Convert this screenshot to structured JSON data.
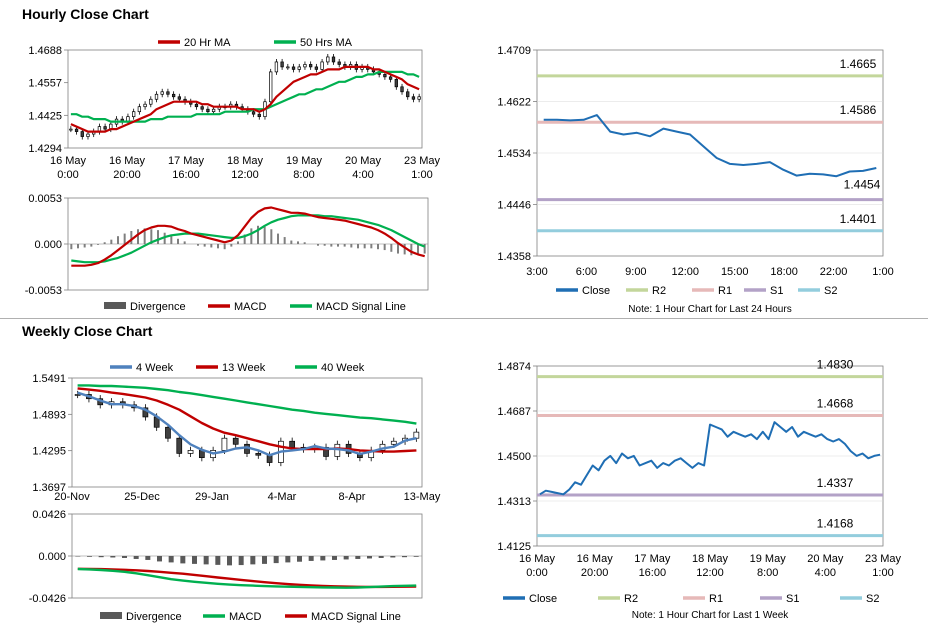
{
  "sections": {
    "hourly_title": "Hourly Close Chart",
    "weekly_title": "Weekly Close Chart"
  },
  "chart_data": [
    {
      "id": "hourly-ma",
      "type": "candlestick",
      "x_tick_labels": [
        [
          "16 May",
          "0:00"
        ],
        [
          "16 May",
          "20:00"
        ],
        [
          "17 May",
          "16:00"
        ],
        [
          "18 May",
          "12:00"
        ],
        [
          "19 May",
          "8:00"
        ],
        [
          "20 May",
          "4:00"
        ],
        [
          "23 May",
          "1:00"
        ]
      ],
      "y_tick_labels": [
        "1.4688",
        "1.4557",
        "1.4425",
        "1.4294"
      ],
      "ylim": [
        1.4294,
        1.4688
      ],
      "legend": [
        "20 Hr MA",
        "50 Hrs MA"
      ],
      "colors": {
        "ma_short": "#c00000",
        "ma_long": "#00b050",
        "candle": "#000000"
      },
      "close": [
        1.437,
        1.436,
        1.434,
        1.435,
        1.436,
        1.438,
        1.437,
        1.439,
        1.441,
        1.44,
        1.442,
        1.444,
        1.446,
        1.447,
        1.449,
        1.451,
        1.452,
        1.451,
        1.45,
        1.449,
        1.448,
        1.447,
        1.446,
        1.445,
        1.444,
        1.445,
        1.446,
        1.446,
        1.447,
        1.446,
        1.445,
        1.444,
        1.443,
        1.442,
        1.448,
        1.46,
        1.464,
        1.462,
        1.462,
        1.461,
        1.462,
        1.463,
        1.462,
        1.461,
        1.464,
        1.466,
        1.464,
        1.463,
        1.462,
        1.463,
        1.461,
        1.462,
        1.461,
        1.46,
        1.459,
        1.458,
        1.457,
        1.454,
        1.452,
        1.45,
        1.449,
        1.45
      ],
      "ma20": [
        1.439,
        1.438,
        1.437,
        1.436,
        1.436,
        1.436,
        1.436,
        1.437,
        1.437,
        1.438,
        1.439,
        1.44,
        1.441,
        1.442,
        1.443,
        1.445,
        1.446,
        1.447,
        1.448,
        1.448,
        1.448,
        1.448,
        1.448,
        1.447,
        1.447,
        1.446,
        1.446,
        1.446,
        1.446,
        1.446,
        1.445,
        1.445,
        1.445,
        1.444,
        1.445,
        1.447,
        1.45,
        1.452,
        1.454,
        1.456,
        1.457,
        1.458,
        1.459,
        1.459,
        1.46,
        1.461,
        1.461,
        1.461,
        1.462,
        1.462,
        1.462,
        1.462,
        1.462,
        1.461,
        1.461,
        1.46,
        1.459,
        1.458,
        1.457,
        1.455,
        1.454,
        1.453
      ],
      "ma50": [
        1.443,
        1.443,
        1.442,
        1.442,
        1.441,
        1.441,
        1.441,
        1.44,
        1.44,
        1.44,
        1.44,
        1.44,
        1.44,
        1.44,
        1.441,
        1.441,
        1.441,
        1.442,
        1.442,
        1.442,
        1.442,
        1.442,
        1.443,
        1.443,
        1.443,
        1.443,
        1.443,
        1.444,
        1.444,
        1.444,
        1.444,
        1.444,
        1.445,
        1.445,
        1.445,
        1.446,
        1.447,
        1.448,
        1.449,
        1.45,
        1.451,
        1.451,
        1.452,
        1.453,
        1.453,
        1.454,
        1.455,
        1.456,
        1.456,
        1.457,
        1.458,
        1.458,
        1.459,
        1.459,
        1.46,
        1.46,
        1.46,
        1.46,
        1.46,
        1.459,
        1.459,
        1.458
      ]
    },
    {
      "id": "hourly-macd",
      "type": "bar+line",
      "y_tick_labels": [
        "0.0053",
        "0.000",
        "-0.0053"
      ],
      "ylim": [
        -0.0053,
        0.0053
      ],
      "legend": [
        "Divergence",
        "MACD",
        "MACD Signal Line"
      ],
      "colors": {
        "divergence": "#7f7f7f",
        "macd": "#c00000",
        "signal": "#00b050"
      },
      "macd": [
        -0.0025,
        -0.0025,
        -0.0025,
        -0.0024,
        -0.0022,
        -0.0018,
        -0.0013,
        -0.0007,
        -0.0001,
        0.0005,
        0.0011,
        0.0016,
        0.0019,
        0.0021,
        0.0021,
        0.002,
        0.0017,
        0.0015,
        0.0012,
        0.001,
        0.0008,
        0.0006,
        0.0004,
        0.0002,
        0.0004,
        0.001,
        0.002,
        0.003,
        0.0037,
        0.0041,
        0.0042,
        0.004,
        0.0038,
        0.0036,
        0.0036,
        0.0035,
        0.0033,
        0.0031,
        0.003,
        0.0029,
        0.0028,
        0.0027,
        0.0025,
        0.0023,
        0.0021,
        0.0019,
        0.0016,
        0.0012,
        0.0007,
        0.0001,
        -0.0004,
        -0.0009,
        -0.0012,
        -0.0014
      ],
      "signal": [
        -0.0019,
        -0.002,
        -0.0021,
        -0.0021,
        -0.0021,
        -0.002,
        -0.0018,
        -0.0016,
        -0.0013,
        -0.001,
        -0.0006,
        -0.0002,
        0.0002,
        0.0005,
        0.0008,
        0.001,
        0.0011,
        0.0012,
        0.0012,
        0.0012,
        0.0011,
        0.001,
        0.0009,
        0.0008,
        0.0007,
        0.0007,
        0.0009,
        0.0012,
        0.0016,
        0.0021,
        0.0025,
        0.0028,
        0.003,
        0.0032,
        0.0033,
        0.0033,
        0.0033,
        0.0033,
        0.0032,
        0.0032,
        0.0031,
        0.003,
        0.0029,
        0.0028,
        0.0026,
        0.0024,
        0.0022,
        0.0019,
        0.0016,
        0.0012,
        0.0008,
        0.0004,
        0.0,
        -0.0003
      ]
    },
    {
      "id": "hourly-levels",
      "type": "line",
      "x_tick_labels": [
        "3:00",
        "6:00",
        "9:00",
        "12:00",
        "15:00",
        "18:00",
        "22:00",
        "1:00"
      ],
      "y_tick_labels": [
        "1.4709",
        "1.4622",
        "1.4534",
        "1.4446",
        "1.4358"
      ],
      "ylim": [
        1.4358,
        1.4709
      ],
      "levels": [
        {
          "name": "R2",
          "value": 1.4665,
          "label": "1.4665",
          "color": "#c3d69b"
        },
        {
          "name": "R1",
          "value": 1.4586,
          "label": "1.4586",
          "color": "#e6b9b8"
        },
        {
          "name": "S1",
          "value": 1.4454,
          "label": "1.4454",
          "color": "#b3a2c7"
        },
        {
          "name": "S2",
          "value": 1.4401,
          "label": "1.4401",
          "color": "#93cddd"
        }
      ],
      "close_color": "#1f6eb4",
      "legend": [
        "Close",
        "R2",
        "R1",
        "S1",
        "S2"
      ],
      "note": "Note: 1 Hour Chart for Last 24 Hours",
      "close": [
        1.459,
        1.459,
        1.4589,
        1.459,
        1.4598,
        1.457,
        1.4565,
        1.4568,
        1.4562,
        1.4575,
        1.457,
        1.4565,
        1.4545,
        1.4525,
        1.4515,
        1.4513,
        1.4515,
        1.4518,
        1.4505,
        1.4495,
        1.4498,
        1.4497,
        1.4494,
        1.4502,
        1.4503,
        1.4508
      ]
    },
    {
      "id": "weekly-ma",
      "type": "candlestick",
      "x_tick_labels": [
        "20-Nov",
        "25-Dec",
        "29-Jan",
        "4-Mar",
        "8-Apr",
        "13-May"
      ],
      "y_tick_labels": [
        "1.5491",
        "1.4893",
        "1.4295",
        "1.3697"
      ],
      "ylim": [
        1.3697,
        1.5491
      ],
      "legend": [
        "4 Week",
        "13 Week",
        "40 Week"
      ],
      "colors": {
        "ma4": "#4f81bd",
        "ma13": "#c00000",
        "ma40": "#00b050",
        "candle": "#000000"
      },
      "close": [
        1.522,
        1.515,
        1.505,
        1.51,
        1.505,
        1.5,
        1.485,
        1.468,
        1.45,
        1.425,
        1.43,
        1.418,
        1.43,
        1.45,
        1.44,
        1.425,
        1.422,
        1.41,
        1.445,
        1.435,
        1.432,
        1.435,
        1.42,
        1.44,
        1.425,
        1.418,
        1.43,
        1.44,
        1.445,
        1.45,
        1.46
      ],
      "ma4": [
        1.525,
        1.519,
        1.512,
        1.506,
        1.506,
        1.503,
        1.497,
        1.486,
        1.472,
        1.455,
        1.44,
        1.431,
        1.425,
        1.428,
        1.433,
        1.435,
        1.43,
        1.422,
        1.428,
        1.43,
        1.432,
        1.437,
        1.433,
        1.432,
        1.43,
        1.424,
        1.428,
        1.433,
        1.436,
        1.446,
        1.45
      ],
      "ma13": [
        1.532,
        1.53,
        1.528,
        1.525,
        1.523,
        1.52,
        1.517,
        1.512,
        1.505,
        1.497,
        1.486,
        1.475,
        1.466,
        1.459,
        1.455,
        1.45,
        1.445,
        1.44,
        1.436,
        1.433,
        1.432,
        1.432,
        1.432,
        1.433,
        1.432,
        1.43,
        1.429,
        1.428,
        1.428,
        1.429,
        1.43
      ],
      "ma40": [
        1.537,
        1.537,
        1.536,
        1.536,
        1.535,
        1.534,
        1.533,
        1.531,
        1.529,
        1.526,
        1.524,
        1.521,
        1.518,
        1.515,
        1.512,
        1.509,
        1.506,
        1.503,
        1.5,
        1.497,
        1.495,
        1.492,
        1.49,
        1.488,
        1.486,
        1.484,
        1.483,
        1.481,
        1.479,
        1.477,
        1.474
      ]
    },
    {
      "id": "weekly-macd",
      "type": "bar+line",
      "y_tick_labels": [
        "0.0426",
        "0.000",
        "-0.0426"
      ],
      "ylim": [
        -0.0426,
        0.0426
      ],
      "legend": [
        "Divergence",
        "MACD",
        "MACD Signal Line"
      ],
      "colors": {
        "divergence": "#595959",
        "macd": "#00b050",
        "signal": "#c00000"
      },
      "divergence": [
        -0.0005,
        -0.0008,
        -0.0012,
        -0.0015,
        -0.002,
        -0.003,
        -0.004,
        -0.0055,
        -0.0065,
        -0.0075,
        -0.008,
        -0.0085,
        -0.009,
        -0.0095,
        -0.0092,
        -0.0085,
        -0.008,
        -0.0072,
        -0.0065,
        -0.0058,
        -0.005,
        -0.0045,
        -0.004,
        -0.0035,
        -0.003,
        -0.0025,
        -0.002,
        -0.0015,
        -0.0012,
        -0.0008
      ],
      "macd": [
        -0.0132,
        -0.0136,
        -0.0142,
        -0.015,
        -0.016,
        -0.0175,
        -0.0195,
        -0.0215,
        -0.0235,
        -0.025,
        -0.0262,
        -0.0272,
        -0.0282,
        -0.029,
        -0.0296,
        -0.03,
        -0.0305,
        -0.0308,
        -0.0311,
        -0.0313,
        -0.0316,
        -0.0318,
        -0.032,
        -0.0322,
        -0.032,
        -0.0315,
        -0.031,
        -0.0305,
        -0.0302,
        -0.03
      ],
      "signal": [
        -0.013,
        -0.0131,
        -0.0133,
        -0.0136,
        -0.014,
        -0.0145,
        -0.0152,
        -0.016,
        -0.017,
        -0.018,
        -0.0192,
        -0.0205,
        -0.0218,
        -0.023,
        -0.0242,
        -0.0255,
        -0.0266,
        -0.0276,
        -0.0285,
        -0.0292,
        -0.0298,
        -0.0303,
        -0.0307,
        -0.031,
        -0.0312,
        -0.0313,
        -0.0313,
        -0.0312,
        -0.0311,
        -0.031
      ]
    },
    {
      "id": "weekly-levels",
      "type": "line",
      "x_tick_labels": [
        [
          "16 May",
          "0:00"
        ],
        [
          "16 May",
          "20:00"
        ],
        [
          "17 May",
          "16:00"
        ],
        [
          "18 May",
          "12:00"
        ],
        [
          "19 May",
          "8:00"
        ],
        [
          "20 May",
          "4:00"
        ],
        [
          "23 May",
          "1:00"
        ]
      ],
      "y_tick_labels": [
        "1.4874",
        "1.4687",
        "1.4500",
        "1.4313",
        "1.4125"
      ],
      "ylim": [
        1.4125,
        1.4874
      ],
      "levels": [
        {
          "name": "R2",
          "value": 1.483,
          "label": "1.4830",
          "color": "#c3d69b"
        },
        {
          "name": "R1",
          "value": 1.4668,
          "label": "1.4668",
          "color": "#e6b9b8"
        },
        {
          "name": "S1",
          "value": 1.4337,
          "label": "1.4337",
          "color": "#b3a2c7"
        },
        {
          "name": "S2",
          "value": 1.4168,
          "label": "1.4168",
          "color": "#93cddd"
        }
      ],
      "close_color": "#1f6eb4",
      "legend": [
        "Close",
        "R2",
        "R1",
        "S1",
        "S2"
      ],
      "note": "Note: 1 Hour Chart for Last 1 Week",
      "close": [
        1.434,
        1.4355,
        1.435,
        1.4345,
        1.434,
        1.436,
        1.439,
        1.438,
        1.442,
        1.446,
        1.444,
        1.448,
        1.45,
        1.447,
        1.451,
        1.449,
        1.45,
        1.446,
        1.447,
        1.448,
        1.445,
        1.447,
        1.446,
        1.448,
        1.449,
        1.447,
        1.445,
        1.447,
        1.446,
        1.463,
        1.462,
        1.461,
        1.458,
        1.46,
        1.459,
        1.458,
        1.459,
        1.457,
        1.46,
        1.457,
        1.464,
        1.462,
        1.46,
        1.462,
        1.458,
        1.46,
        1.459,
        1.458,
        1.459,
        1.457,
        1.456,
        1.457,
        1.455,
        1.452,
        1.45,
        1.451,
        1.449,
        1.45,
        1.4505
      ]
    }
  ]
}
